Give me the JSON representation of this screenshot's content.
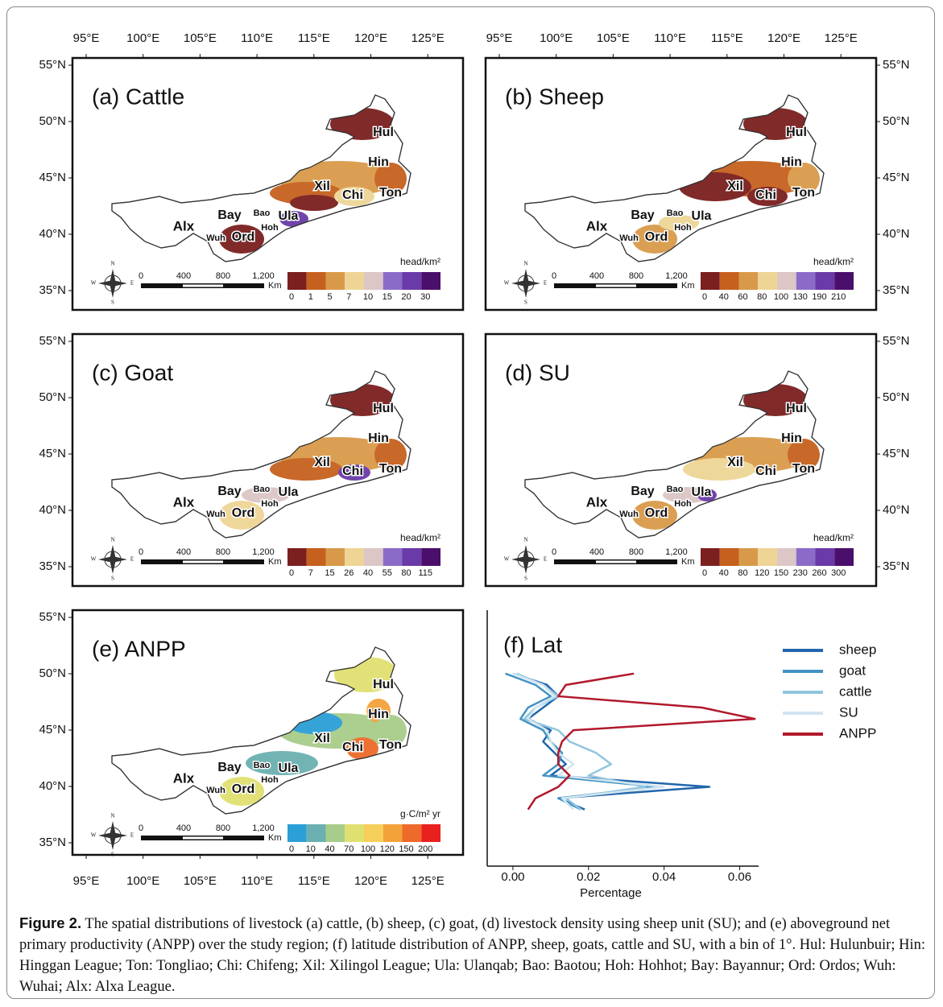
{
  "panels": [
    {
      "title": "(a) Cattle",
      "legend_unit": "head/km²",
      "legend_labels": [
        "0",
        "1",
        "5",
        "7",
        "10",
        "15",
        "20",
        "30"
      ],
      "legend_colors": [
        "#7b1f1f",
        "#c6601e",
        "#d89a4a",
        "#eed596",
        "#dcc6c6",
        "#8a6cc8",
        "#6a3aa8",
        "#4a0f6a"
      ]
    },
    {
      "title": "(b) Sheep",
      "legend_unit": "head/km²",
      "legend_labels": [
        "0",
        "40",
        "60",
        "80",
        "100",
        "130",
        "190",
        "210"
      ],
      "legend_colors": [
        "#7b1f1f",
        "#c6601e",
        "#d89a4a",
        "#eed596",
        "#dcc6c6",
        "#8a6cc8",
        "#6a3aa8",
        "#4a0f6a"
      ]
    },
    {
      "title": "(c) Goat",
      "legend_unit": "head/km²",
      "legend_labels": [
        "0",
        "7",
        "15",
        "26",
        "40",
        "55",
        "80",
        "115"
      ],
      "legend_colors": [
        "#7b1f1f",
        "#c6601e",
        "#d89a4a",
        "#eed596",
        "#dcc6c6",
        "#8a6cc8",
        "#6a3aa8",
        "#4a0f6a"
      ]
    },
    {
      "title": "(d) SU",
      "legend_unit": "head/km²",
      "legend_labels": [
        "0",
        "40",
        "80",
        "120",
        "150",
        "230",
        "260",
        "300"
      ],
      "legend_colors": [
        "#7b1f1f",
        "#c6601e",
        "#d89a4a",
        "#eed596",
        "#dcc6c6",
        "#8a6cc8",
        "#6a3aa8",
        "#4a0f6a"
      ]
    },
    {
      "title": "(e) ANPP",
      "legend_unit": "g·C/m² yr",
      "legend_labels": [
        "0",
        "10",
        "40",
        "70",
        "100",
        "120",
        "150",
        "200"
      ],
      "legend_colors": [
        "#2b9fd6",
        "#6bb0b0",
        "#a8cc8a",
        "#e0e070",
        "#f5cf5a",
        "#f3a23a",
        "#ee6a2a",
        "#e8201e"
      ]
    }
  ],
  "map_labels": [
    "Hul",
    "Hin",
    "Xil",
    "Chi",
    "Ton",
    "Bay",
    "Bao",
    "Ula",
    "Hoh",
    "Ord",
    "Wuh",
    "Alx"
  ],
  "lon_ticks": [
    "95°E",
    "100°E",
    "105°E",
    "110°E",
    "115°E",
    "120°E",
    "125°E"
  ],
  "lat_ticks": [
    "55°N",
    "50°N",
    "45°N",
    "40°N",
    "35°N"
  ],
  "scale_bar": [
    "0",
    "400",
    "800",
    "1,200",
    "Km"
  ],
  "compass": [
    "N",
    "S",
    "W",
    "E"
  ],
  "chart_data": {
    "type": "line",
    "title": "(f) Lat",
    "xlabel": "Percentage",
    "xlim": [
      -0.0068,
      0.065
    ],
    "xticks": [
      {
        "value": 0,
        "label": "0.00"
      },
      {
        "value": 0.02,
        "label": "0.02"
      },
      {
        "value": 0.04,
        "label": "0.04"
      },
      {
        "value": 0.06,
        "label": "0.06"
      }
    ],
    "ylim": [
      33,
      55.6
    ],
    "y": [
      38,
      39,
      40,
      41,
      42,
      43,
      44,
      45,
      46,
      47,
      48,
      49,
      50
    ],
    "series": [
      {
        "name": "sheep",
        "color": "#2166ac",
        "values": [
          0.019,
          0.012,
          0.052,
          0.01,
          0.014,
          0.011,
          0.008,
          0.01,
          0.004,
          0.008,
          0.012,
          0.009,
          0.0
        ]
      },
      {
        "name": "goat",
        "color": "#4393c3",
        "values": [
          0.018,
          0.012,
          0.038,
          0.008,
          0.012,
          0.013,
          0.01,
          0.008,
          0.002,
          0.004,
          0.01,
          0.006,
          -0.002
        ]
      },
      {
        "name": "cattle",
        "color": "#92c5de",
        "values": [
          0.018,
          0.014,
          0.035,
          0.02,
          0.026,
          0.022,
          0.015,
          0.012,
          0.003,
          0.006,
          0.012,
          0.008,
          0.001
        ]
      },
      {
        "name": "SU",
        "color": "#d1e5f0",
        "values": [
          0.016,
          0.013,
          0.04,
          0.012,
          0.016,
          0.012,
          0.01,
          0.009,
          0.004,
          0.006,
          0.011,
          0.008,
          0.0
        ]
      },
      {
        "name": "ANPP",
        "color": "#b2182b",
        "values": [
          0.004,
          0.006,
          0.012,
          0.015,
          0.012,
          0.012,
          0.013,
          0.016,
          0.064,
          0.05,
          0.012,
          0.014,
          0.032
        ]
      }
    ]
  },
  "caption": {
    "label": "Figure 2.",
    "text": " The spatial distributions of livestock (a) cattle, (b) sheep, (c) goat, (d) livestock density using sheep unit (SU); and (e) aboveground net primary productivity (ANPP) over the study region; (f) latitude distribution of ANPP, sheep, goats, cattle and SU, with a bin of 1°. Hul: Hulunbuir; Hin: Hinggan League; Ton: Tongliao; Chi: Chifeng; Xil: Xilingol League; Ula: Ulanqab; Bao: Baotou; Hoh: Hohhot; Bay: Bayannur; Ord: Ordos; Wuh: Wuhai; Alx: Alxa League."
  }
}
